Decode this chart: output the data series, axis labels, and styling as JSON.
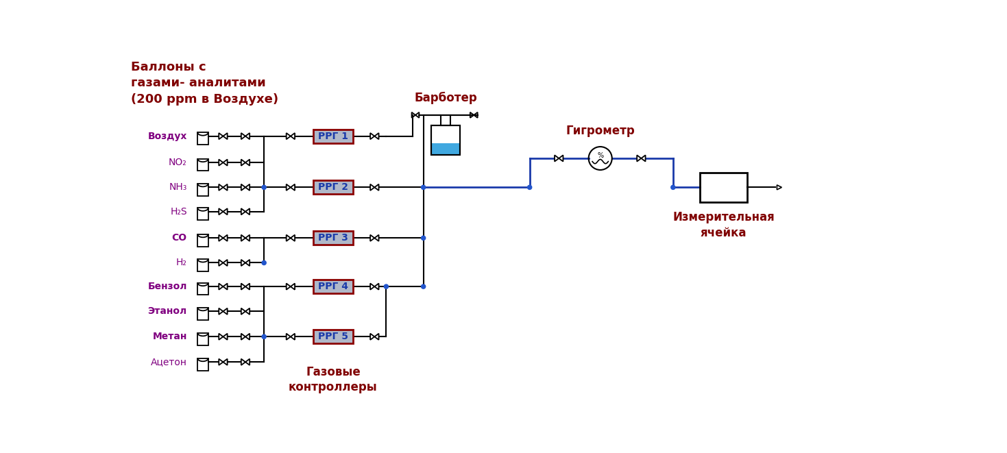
{
  "bg_color": "#ffffff",
  "line_color": "#000000",
  "blue_color": "#1a3aaa",
  "junction_color": "#2255cc",
  "dark_red": "#800000",
  "purple": "#800080",
  "rrg_border": "#8b0000",
  "rrg_fill": "#b0b8c8",
  "rrg_text": "#1a3aaa",
  "liquid_color": "#40a8e0",
  "gas_names": [
    "Воздух",
    "NO₂",
    "NH₃",
    "H₂S",
    "CO",
    "H₂",
    "Бензол",
    "Этанол",
    "Метан",
    "Ацетон"
  ],
  "gas_bold": [
    true,
    false,
    false,
    false,
    true,
    false,
    true,
    true,
    true,
    false
  ],
  "rrg_labels": [
    "РРГ 1",
    "РРГ 2",
    "РРГ 3",
    "РРГ 4",
    "РРГ 5"
  ],
  "header": "Баллоны с\nгазами- аналитами\n(200 ppm в Воздухе)",
  "barboter_label": "Барботер",
  "hygro_label": "Гигрометр",
  "cell_label": "Измерительная\nячейка",
  "controllers_label": "Газовые\nконтроллеры"
}
